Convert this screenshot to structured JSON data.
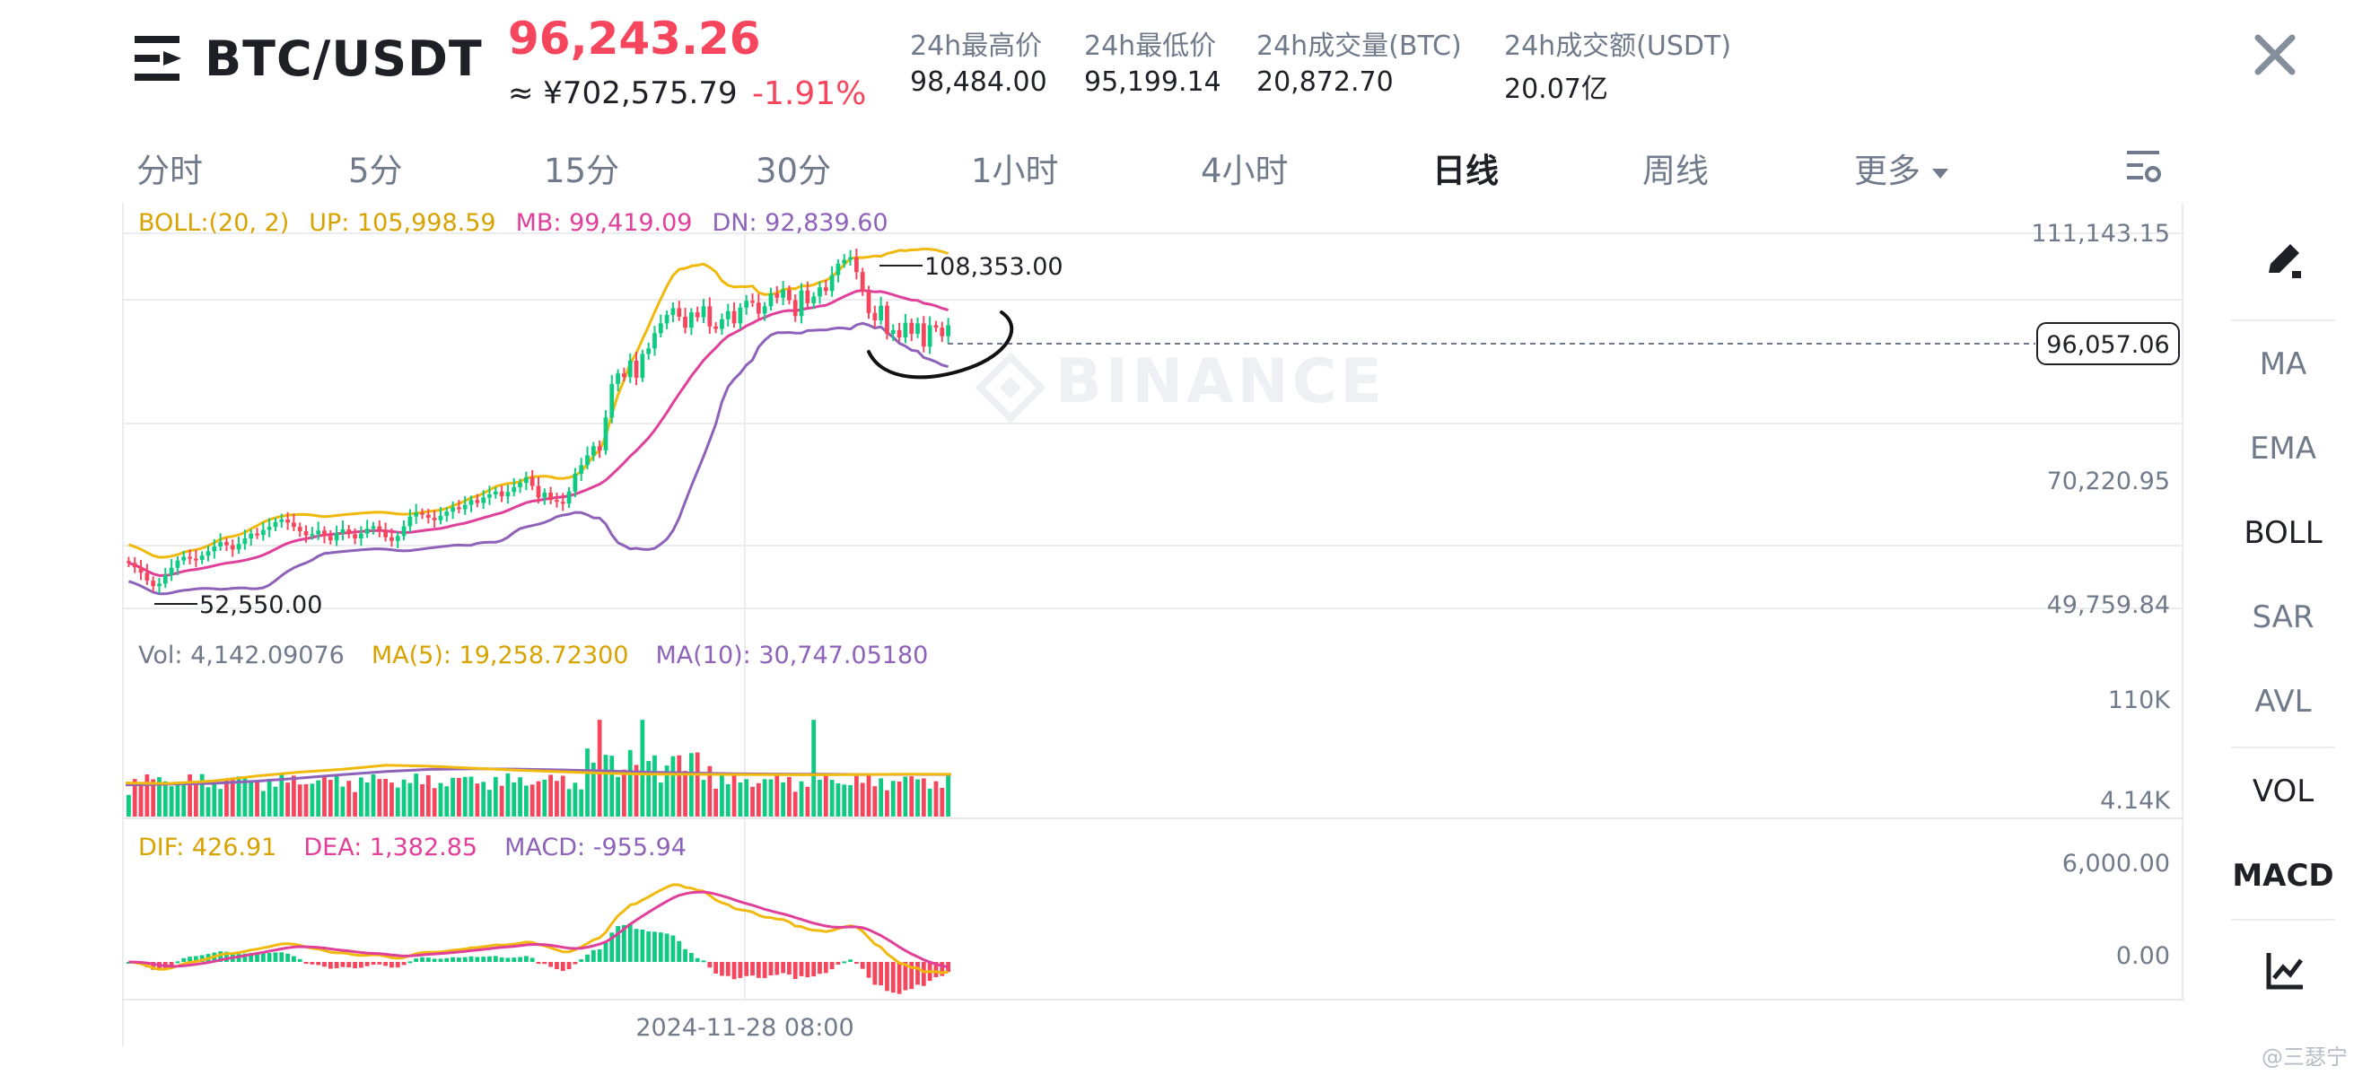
{
  "header": {
    "pair": "BTC/USDT",
    "last_price": "96,243.26",
    "cny_price": "≈ ¥702,575.79",
    "change_pct": "-1.91%",
    "stats": [
      {
        "label": "24h最高价",
        "value": "98,484.00"
      },
      {
        "label": "24h最低价",
        "value": "95,199.14"
      },
      {
        "label": "24h成交量(BTC)",
        "value": "20,872.70"
      },
      {
        "label": "24h成交额(USDT)",
        "value": "20.07亿"
      }
    ]
  },
  "tabs": [
    {
      "label": "分时",
      "active": false
    },
    {
      "label": "5分",
      "active": false
    },
    {
      "label": "15分",
      "active": false
    },
    {
      "label": "30分",
      "active": false
    },
    {
      "label": "1小时",
      "active": false
    },
    {
      "label": "4小时",
      "active": false
    },
    {
      "label": "日线",
      "active": true
    },
    {
      "label": "周线",
      "active": false
    },
    {
      "label": "更多",
      "active": false
    }
  ],
  "toolbar": [
    "MA",
    "EMA",
    "BOLL",
    "SAR",
    "AVL",
    "VOL",
    "MACD"
  ],
  "watermark": "BINANCE",
  "footer_user": "@三瑟宁",
  "colors": {
    "up": "#0ecb81",
    "down": "#f6465d",
    "yellow": "#f0b90b",
    "pink": "#e03f9a",
    "purple": "#8e62b8",
    "text_muted": "#707a8a"
  },
  "icons": {
    "menu": "menu-icon",
    "close": "close-icon",
    "settings": "chart-settings-icon",
    "draw": "draw-pen-icon",
    "indicator": "indicator-chart-icon",
    "dropdown": "triangle-down-icon"
  },
  "chart_data": {
    "type": "candlestick",
    "timeframe": "日线",
    "price_axis": {
      "ticks": [
        "111,143.15",
        "70,220.95",
        "49,759.84"
      ],
      "range": [
        49759.84,
        111143.15
      ]
    },
    "current_price_label": "96,057.06",
    "max_label": "108,353.00",
    "min_label": "52,550.00",
    "boll": {
      "label": "BOLL:(20, 2)",
      "up": "UP: 105,998.59",
      "mb": "MB: 99,419.09",
      "dn": "DN: 92,839.60"
    },
    "volume": {
      "label": "Vol: 4,142.09076",
      "ma5": "MA(5): 19,258.72300",
      "ma10": "MA(10): 30,747.05180",
      "ticks": [
        "110K",
        "4.14K"
      ]
    },
    "macd": {
      "dif": "DIF: 426.91",
      "dea": "DEA: 1,382.85",
      "macd": "MACD: -955.94",
      "ticks": [
        "6,000.00",
        "0.00"
      ]
    },
    "x_label": "2024-11-28 08:00",
    "close": [
      57200,
      56500,
      55600,
      54300,
      53400,
      53800,
      55200,
      56400,
      57600,
      58200,
      57900,
      57700,
      58400,
      59100,
      59900,
      60600,
      60100,
      59400,
      60300,
      61200,
      62000,
      61800,
      62600,
      63100,
      63900,
      64300,
      63800,
      63100,
      62400,
      61700,
      61900,
      62500,
      61600,
      60900,
      62100,
      62700,
      61900,
      61200,
      62000,
      62800,
      63200,
      62600,
      61400,
      60800,
      61600,
      63200,
      64800,
      65400,
      65100,
      64600,
      64200,
      64900,
      65600,
      66300,
      66000,
      66700,
      67500,
      67000,
      67900,
      68400,
      68900,
      68100,
      68800,
      69600,
      70300,
      71200,
      69800,
      67900,
      68700,
      67500,
      67200,
      66900,
      68900,
      71800,
      73200,
      74800,
      76300,
      75600,
      81000,
      86500,
      88200,
      87600,
      90300,
      87500,
      91400,
      92300,
      94800,
      96400,
      97800,
      98900,
      97500,
      95700,
      98200,
      97400,
      99200,
      95900,
      95500,
      97100,
      98400,
      96400,
      99000,
      100100,
      99800,
      98000,
      99200,
      101300,
      100600,
      101900,
      100200,
      97600,
      101800,
      99700,
      100800,
      102300,
      101700,
      104300,
      106200,
      106800,
      107200,
      104800,
      101600,
      98100,
      96900,
      99300,
      94700,
      95300,
      94100,
      96500,
      94700,
      96400,
      92600,
      96100,
      95700,
      94300,
      96100
    ],
    "ma5_points": [
      34000,
      33500,
      36000,
      41000,
      45000,
      48000,
      52000,
      51000,
      49000,
      47000,
      45500,
      44000,
      43000,
      42800,
      42600,
      42500,
      42400,
      42600,
      43000,
      42800
    ],
    "ma10_points": [
      32000,
      32800,
      33600,
      35800,
      39000,
      42500,
      45600,
      47800,
      48400,
      48100,
      47300,
      46300,
      45000,
      44200,
      43400,
      43100,
      42900,
      42600,
      42700,
      42600
    ]
  }
}
